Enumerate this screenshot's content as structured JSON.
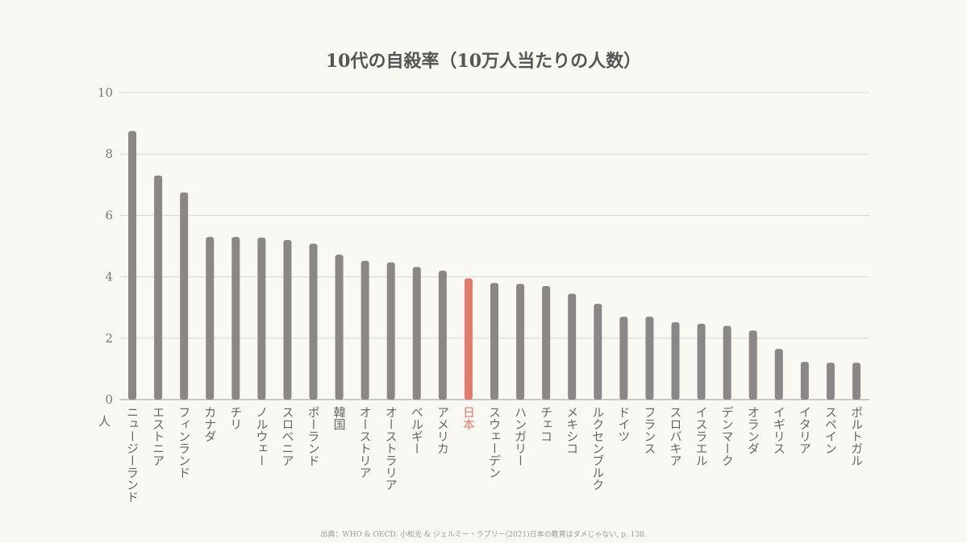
{
  "chart_data": {
    "type": "bar",
    "title": "10代の自殺率（10万人当たりの人数）",
    "ylabel": "人",
    "xlabel": "",
    "ylim": [
      0,
      10
    ],
    "yticks": [
      0,
      2,
      4,
      6,
      8,
      10
    ],
    "grid": true,
    "categories": [
      "ニュージーランド",
      "エストニア",
      "フィンランド",
      "カナダ",
      "チリ",
      "ノルウェー",
      "スロベニア",
      "ポーランド",
      "韓国",
      "オーストリア",
      "オーストラリア",
      "ベルギー",
      "アメリカ",
      "日本",
      "スウェーデン",
      "ハンガリー",
      "チェコ",
      "メキシコ",
      "ルクセンブルク",
      "ドイツ",
      "フランス",
      "スロバキア",
      "イスラエル",
      "デンマーク",
      "オランダ",
      "イギリス",
      "イタリア",
      "スペイン",
      "ポルトガル"
    ],
    "values": [
      8.75,
      7.3,
      6.75,
      5.3,
      5.3,
      5.28,
      5.2,
      5.08,
      4.72,
      4.52,
      4.47,
      4.32,
      4.2,
      3.95,
      3.8,
      3.77,
      3.7,
      3.45,
      3.12,
      2.7,
      2.7,
      2.52,
      2.47,
      2.4,
      2.25,
      1.65,
      1.23,
      1.2,
      1.2
    ],
    "highlight": "日本",
    "colors": {
      "bar": "#8b8786",
      "highlight": "#e07b6f",
      "grid": "#d9d7d2",
      "axis": "#9a9a9a"
    }
  },
  "unit_label": "人",
  "source": "出典：WHO & OECD. 小松光 & ジェルミー・ラプリー(2021)日本の教育はダメじゃない, p. 138."
}
